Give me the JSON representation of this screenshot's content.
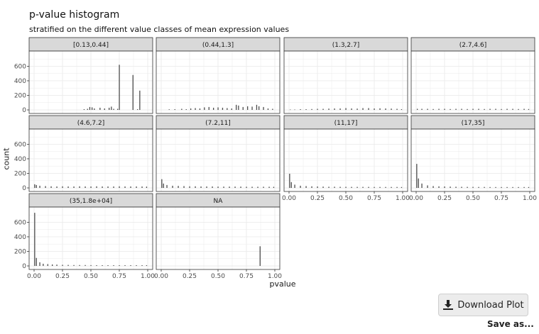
{
  "title": "p-value histogram",
  "subtitle": "stratified on the different value classes of mean expression values",
  "buttons": {
    "download_label": "Download Plot",
    "save_as_label": "Save as..."
  },
  "icons": {
    "download": "download-icon"
  },
  "colors": {
    "bar": "#4d4d4d",
    "strip": "#d9d9d9",
    "panel_border": "#333333",
    "grid": "#ebebeb"
  },
  "chart_data": {
    "type": "bar",
    "title": "p-value histogram",
    "subtitle": "stratified on the different value classes of mean expression values",
    "xlabel": "pvalue",
    "ylabel": "count",
    "xlim": [
      0,
      1
    ],
    "ylim": [
      0,
      760
    ],
    "x_ticks": [
      "0.00",
      "0.25",
      "0.50",
      "0.75",
      "1.00"
    ],
    "y_ticks": [
      "0",
      "200",
      "400",
      "600"
    ],
    "grid": true,
    "facets": [
      {
        "label": "[0.13,0.44]",
        "bars": [
          [
            0.44,
            10
          ],
          [
            0.47,
            15
          ],
          [
            0.49,
            40
          ],
          [
            0.51,
            35
          ],
          [
            0.53,
            20
          ],
          [
            0.58,
            30
          ],
          [
            0.62,
            20
          ],
          [
            0.66,
            30
          ],
          [
            0.68,
            45
          ],
          [
            0.7,
            15
          ],
          [
            0.735,
            15
          ],
          [
            0.75,
            620
          ],
          [
            0.87,
            480
          ],
          [
            0.91,
            10
          ],
          [
            0.93,
            265
          ]
        ]
      },
      {
        "label": "(0.44,1.3]",
        "bars": [
          [
            0.07,
            8
          ],
          [
            0.12,
            10
          ],
          [
            0.18,
            15
          ],
          [
            0.22,
            10
          ],
          [
            0.26,
            20
          ],
          [
            0.3,
            25
          ],
          [
            0.34,
            20
          ],
          [
            0.38,
            35
          ],
          [
            0.42,
            40
          ],
          [
            0.46,
            30
          ],
          [
            0.5,
            35
          ],
          [
            0.54,
            30
          ],
          [
            0.58,
            25
          ],
          [
            0.62,
            20
          ],
          [
            0.66,
            70
          ],
          [
            0.68,
            60
          ],
          [
            0.72,
            40
          ],
          [
            0.76,
            50
          ],
          [
            0.8,
            45
          ],
          [
            0.84,
            70
          ],
          [
            0.86,
            50
          ],
          [
            0.9,
            40
          ],
          [
            0.94,
            20
          ],
          [
            0.98,
            15
          ]
        ]
      },
      {
        "label": "(1.3,2.7]",
        "bars": [
          [
            0.01,
            5
          ],
          [
            0.05,
            5
          ],
          [
            0.1,
            10
          ],
          [
            0.15,
            10
          ],
          [
            0.2,
            12
          ],
          [
            0.25,
            15
          ],
          [
            0.3,
            15
          ],
          [
            0.35,
            18
          ],
          [
            0.4,
            20
          ],
          [
            0.45,
            20
          ],
          [
            0.5,
            25
          ],
          [
            0.55,
            20
          ],
          [
            0.6,
            18
          ],
          [
            0.65,
            25
          ],
          [
            0.7,
            25
          ],
          [
            0.75,
            20
          ],
          [
            0.8,
            22
          ],
          [
            0.85,
            20
          ],
          [
            0.9,
            18
          ],
          [
            0.95,
            15
          ],
          [
            0.99,
            10
          ]
        ]
      },
      {
        "label": "(2.7,4.6]",
        "bars": [
          [
            0.01,
            15
          ],
          [
            0.05,
            15
          ],
          [
            0.1,
            15
          ],
          [
            0.15,
            12
          ],
          [
            0.2,
            15
          ],
          [
            0.25,
            15
          ],
          [
            0.3,
            12
          ],
          [
            0.35,
            15
          ],
          [
            0.4,
            15
          ],
          [
            0.45,
            12
          ],
          [
            0.5,
            15
          ],
          [
            0.55,
            15
          ],
          [
            0.6,
            12
          ],
          [
            0.65,
            15
          ],
          [
            0.7,
            15
          ],
          [
            0.75,
            12
          ],
          [
            0.8,
            15
          ],
          [
            0.85,
            15
          ],
          [
            0.9,
            12
          ],
          [
            0.95,
            15
          ],
          [
            0.99,
            12
          ]
        ]
      },
      {
        "label": "(4.6,7.2]",
        "bars": [
          [
            0.005,
            50
          ],
          [
            0.02,
            40
          ],
          [
            0.05,
            30
          ],
          [
            0.1,
            25
          ],
          [
            0.15,
            22
          ],
          [
            0.2,
            20
          ],
          [
            0.25,
            22
          ],
          [
            0.3,
            20
          ],
          [
            0.35,
            20
          ],
          [
            0.4,
            22
          ],
          [
            0.45,
            20
          ],
          [
            0.5,
            20
          ],
          [
            0.55,
            22
          ],
          [
            0.6,
            20
          ],
          [
            0.65,
            20
          ],
          [
            0.7,
            20
          ],
          [
            0.75,
            22
          ],
          [
            0.8,
            20
          ],
          [
            0.85,
            20
          ],
          [
            0.9,
            20
          ],
          [
            0.95,
            20
          ],
          [
            0.99,
            18
          ]
        ]
      },
      {
        "label": "(7.2,11]",
        "bars": [
          [
            0.005,
            120
          ],
          [
            0.02,
            60
          ],
          [
            0.05,
            40
          ],
          [
            0.1,
            30
          ],
          [
            0.15,
            28
          ],
          [
            0.2,
            25
          ],
          [
            0.25,
            22
          ],
          [
            0.3,
            22
          ],
          [
            0.35,
            20
          ],
          [
            0.4,
            20
          ],
          [
            0.45,
            20
          ],
          [
            0.5,
            18
          ],
          [
            0.55,
            18
          ],
          [
            0.6,
            18
          ],
          [
            0.65,
            18
          ],
          [
            0.7,
            18
          ],
          [
            0.75,
            16
          ],
          [
            0.8,
            16
          ],
          [
            0.85,
            16
          ],
          [
            0.9,
            16
          ],
          [
            0.95,
            16
          ],
          [
            0.99,
            15
          ]
        ]
      },
      {
        "label": "(11,17]",
        "bars": [
          [
            0.005,
            195
          ],
          [
            0.02,
            80
          ],
          [
            0.05,
            45
          ],
          [
            0.1,
            30
          ],
          [
            0.15,
            25
          ],
          [
            0.2,
            22
          ],
          [
            0.25,
            20
          ],
          [
            0.3,
            18
          ],
          [
            0.35,
            16
          ],
          [
            0.4,
            16
          ],
          [
            0.45,
            15
          ],
          [
            0.5,
            15
          ],
          [
            0.55,
            14
          ],
          [
            0.6,
            14
          ],
          [
            0.65,
            14
          ],
          [
            0.7,
            14
          ],
          [
            0.75,
            13
          ],
          [
            0.8,
            13
          ],
          [
            0.85,
            13
          ],
          [
            0.9,
            13
          ],
          [
            0.95,
            13
          ],
          [
            0.99,
            12
          ]
        ]
      },
      {
        "label": "(17,35]",
        "bars": [
          [
            0.005,
            330
          ],
          [
            0.02,
            130
          ],
          [
            0.05,
            60
          ],
          [
            0.1,
            35
          ],
          [
            0.15,
            25
          ],
          [
            0.2,
            22
          ],
          [
            0.25,
            20
          ],
          [
            0.3,
            18
          ],
          [
            0.35,
            16
          ],
          [
            0.4,
            15
          ],
          [
            0.45,
            14
          ],
          [
            0.5,
            14
          ],
          [
            0.55,
            13
          ],
          [
            0.6,
            13
          ],
          [
            0.65,
            12
          ],
          [
            0.7,
            12
          ],
          [
            0.75,
            12
          ],
          [
            0.8,
            12
          ],
          [
            0.85,
            12
          ],
          [
            0.9,
            12
          ],
          [
            0.95,
            12
          ],
          [
            0.99,
            12
          ]
        ]
      },
      {
        "label": "(35,1.8e+04]",
        "bars": [
          [
            0.005,
            730
          ],
          [
            0.02,
            110
          ],
          [
            0.05,
            50
          ],
          [
            0.08,
            30
          ],
          [
            0.12,
            25
          ],
          [
            0.16,
            20
          ],
          [
            0.2,
            18
          ],
          [
            0.25,
            15
          ],
          [
            0.3,
            14
          ],
          [
            0.35,
            12
          ],
          [
            0.4,
            12
          ],
          [
            0.45,
            12
          ],
          [
            0.5,
            11
          ],
          [
            0.55,
            10
          ],
          [
            0.6,
            10
          ],
          [
            0.65,
            10
          ],
          [
            0.7,
            10
          ],
          [
            0.75,
            10
          ],
          [
            0.8,
            10
          ],
          [
            0.85,
            10
          ],
          [
            0.9,
            10
          ],
          [
            0.95,
            10
          ],
          [
            0.99,
            10
          ]
        ]
      },
      {
        "label": "NA",
        "bars": [
          [
            0.87,
            270
          ]
        ]
      }
    ]
  }
}
